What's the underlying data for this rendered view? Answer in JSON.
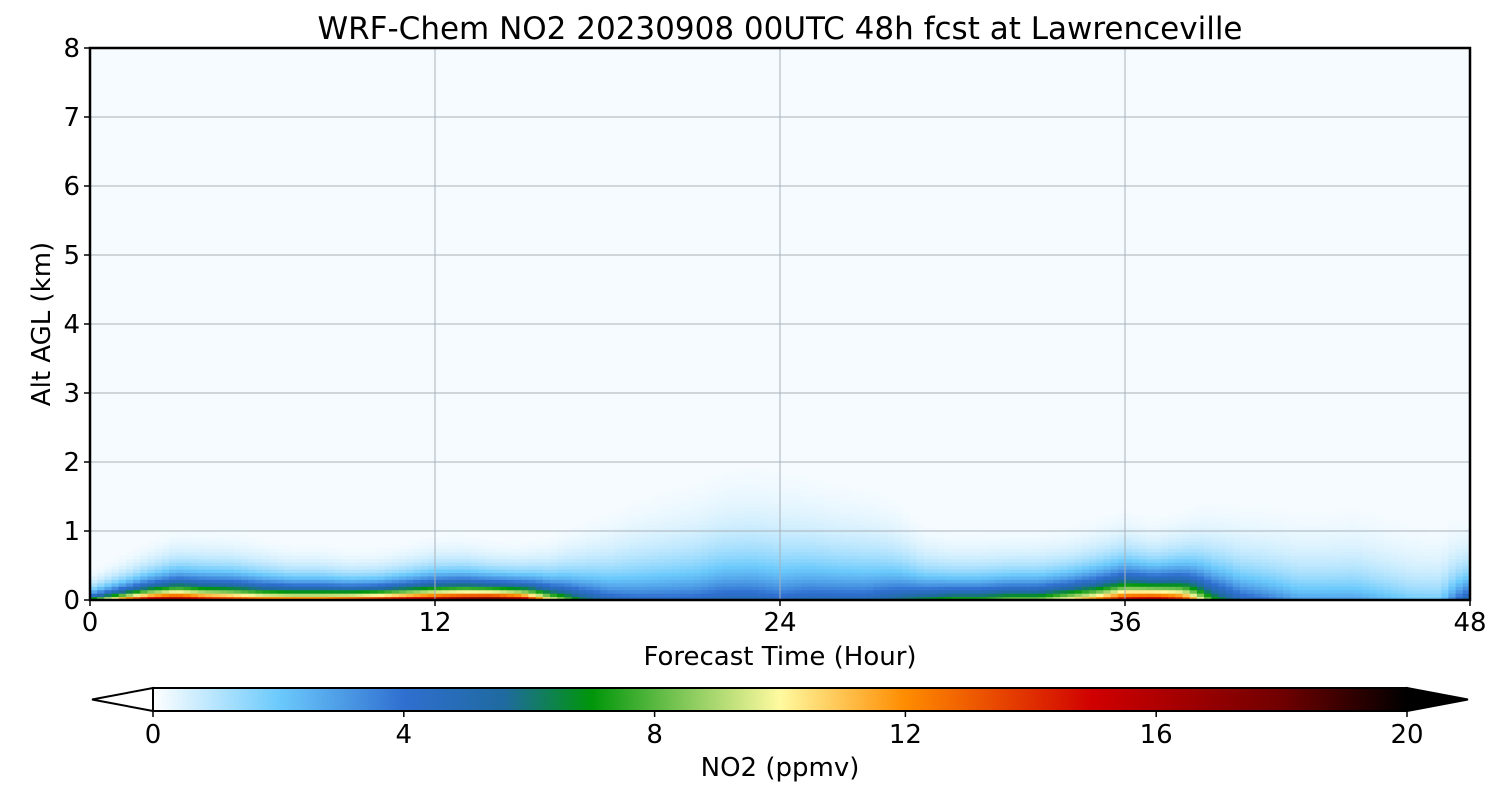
{
  "chart_data": {
    "type": "heatmap",
    "title": "WRF-Chem NO2  20230908 00UTC 48h fcst at Lawrenceville",
    "xlabel": "Forecast Time (Hour)",
    "ylabel": "Alt AGL (km)",
    "xlim": [
      0,
      48
    ],
    "ylim": [
      0,
      8
    ],
    "x_ticks": [
      "0",
      "12",
      "24",
      "36",
      "48"
    ],
    "y_ticks": [
      "0",
      "1",
      "2",
      "3",
      "4",
      "5",
      "6",
      "7",
      "8"
    ],
    "grid": true,
    "colorbar": {
      "label": "NO2  (ppmv)",
      "range": [
        0,
        20
      ],
      "ticks": [
        "0",
        "4",
        "8",
        "12",
        "16",
        "20"
      ],
      "extend": "both",
      "stops": [
        {
          "v": 0,
          "c": "#ffffff"
        },
        {
          "v": 2,
          "c": "#6ccafc"
        },
        {
          "v": 4,
          "c": "#2f6fd0"
        },
        {
          "v": 5.6,
          "c": "#1f6aa0"
        },
        {
          "v": 7,
          "c": "#00960a"
        },
        {
          "v": 8.5,
          "c": "#84c95a"
        },
        {
          "v": 10,
          "c": "#fffaa0"
        },
        {
          "v": 12,
          "c": "#ff8c00"
        },
        {
          "v": 15,
          "c": "#d00000"
        },
        {
          "v": 18,
          "c": "#700000"
        },
        {
          "v": 20,
          "c": "#000000"
        }
      ]
    },
    "profile_hours": [
      0,
      1,
      2,
      3,
      4,
      5,
      6,
      7,
      8,
      9,
      10,
      11,
      12,
      13,
      14,
      15,
      16,
      17,
      18,
      19,
      20,
      21,
      22,
      23,
      24,
      25,
      26,
      27,
      28,
      29,
      30,
      31,
      32,
      33,
      34,
      35,
      36,
      37,
      38,
      39,
      40,
      41,
      42,
      43,
      44,
      45,
      46,
      47,
      48
    ],
    "surface_no2": [
      8,
      13,
      17,
      18,
      16,
      15,
      14,
      14,
      14,
      15,
      16,
      17,
      18,
      19,
      20,
      18,
      11,
      7,
      5,
      4.5,
      4.5,
      4.5,
      5,
      5,
      4.5,
      5,
      5,
      5,
      6,
      7,
      8,
      8,
      9,
      9,
      11,
      13,
      16,
      17,
      15,
      8,
      5,
      4,
      3,
      3,
      3,
      2.5,
      2,
      2,
      6
    ],
    "layer_depth_km": [
      0.3,
      0.4,
      0.5,
      0.6,
      0.6,
      0.6,
      0.55,
      0.5,
      0.5,
      0.45,
      0.45,
      0.5,
      0.55,
      0.55,
      0.5,
      0.5,
      0.6,
      0.8,
      1.0,
      1.2,
      1.3,
      1.4,
      1.5,
      1.55,
      1.55,
      1.45,
      1.35,
      1.3,
      1.1,
      0.8,
      0.7,
      0.7,
      0.7,
      0.7,
      0.7,
      0.75,
      0.8,
      0.7,
      0.8,
      1.0,
      1.1,
      1.15,
      1.2,
      1.2,
      1.25,
      1.2,
      1.15,
      1.1,
      0.9
    ]
  }
}
